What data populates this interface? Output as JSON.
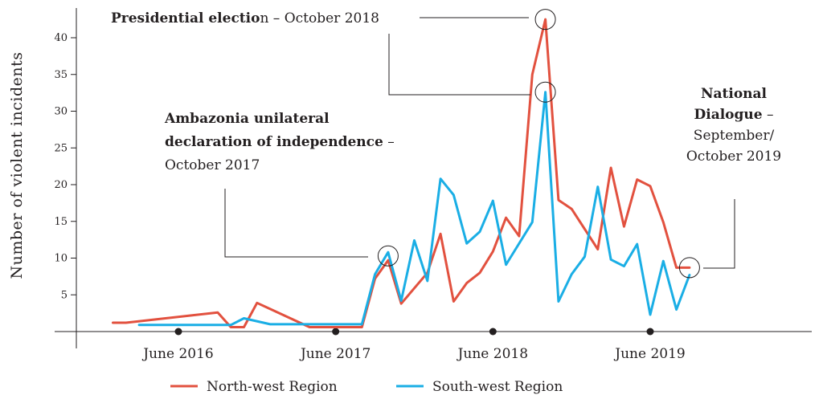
{
  "chart_data": {
    "type": "line",
    "ylabel": "Number of violent incidents",
    "xlabel": "",
    "ylim": [
      0,
      43
    ],
    "yticks": [
      5,
      10,
      15,
      20,
      25,
      30,
      35,
      40
    ],
    "xlim": [
      "2015-12",
      "2020-03"
    ],
    "x_markers": [
      {
        "x": "2016-06",
        "label": "June 2016"
      },
      {
        "x": "2017-06",
        "label": "June 2017"
      },
      {
        "x": "2018-06",
        "label": "June 2018"
      },
      {
        "x": "2019-06",
        "label": "June 2019"
      }
    ],
    "series": [
      {
        "name": "North-west Region",
        "color": "#e2513f",
        "points": [
          [
            "2016-01",
            1.2
          ],
          [
            "2016-02",
            1.2
          ],
          [
            "2016-09",
            2.6
          ],
          [
            "2016-10",
            0.6
          ],
          [
            "2016-11",
            0.6
          ],
          [
            "2016-12",
            3.9
          ],
          [
            "2017-04",
            0.6
          ],
          [
            "2017-06",
            0.6
          ],
          [
            "2017-08",
            0.6
          ],
          [
            "2017-09",
            7.2
          ],
          [
            "2017-10",
            9.7
          ],
          [
            "2017-11",
            3.8
          ],
          [
            "2018-01",
            8.0
          ],
          [
            "2018-02",
            13.3
          ],
          [
            "2018-03",
            4.1
          ],
          [
            "2018-04",
            6.6
          ],
          [
            "2018-05",
            8.0
          ],
          [
            "2018-06",
            10.9
          ],
          [
            "2018-07",
            15.5
          ],
          [
            "2018-08",
            13.0
          ],
          [
            "2018-09",
            35.0
          ],
          [
            "2018-10",
            42.5
          ],
          [
            "2018-11",
            17.9
          ],
          [
            "2018-12",
            16.7
          ],
          [
            "2019-02",
            11.2
          ],
          [
            "2019-03",
            22.3
          ],
          [
            "2019-04",
            14.3
          ],
          [
            "2019-05",
            20.7
          ],
          [
            "2019-06",
            19.8
          ],
          [
            "2019-07",
            14.9
          ],
          [
            "2019-08",
            8.7
          ],
          [
            "2019-09",
            8.7
          ]
        ]
      },
      {
        "name": "South-west Region",
        "color": "#1aaee5",
        "points": [
          [
            "2016-03",
            0.9
          ],
          [
            "2016-10",
            0.9
          ],
          [
            "2016-11",
            1.8
          ],
          [
            "2017-01",
            1.0
          ],
          [
            "2017-06",
            1.0
          ],
          [
            "2017-08",
            1.0
          ],
          [
            "2017-09",
            7.8
          ],
          [
            "2017-10",
            10.8
          ],
          [
            "2017-11",
            4.2
          ],
          [
            "2017-12",
            12.4
          ],
          [
            "2018-01",
            6.9
          ],
          [
            "2018-02",
            20.8
          ],
          [
            "2018-03",
            18.6
          ],
          [
            "2018-04",
            12.0
          ],
          [
            "2018-05",
            13.6
          ],
          [
            "2018-06",
            17.8
          ],
          [
            "2018-07",
            9.1
          ],
          [
            "2018-09",
            14.9
          ],
          [
            "2018-10",
            32.6
          ],
          [
            "2018-11",
            4.1
          ],
          [
            "2018-12",
            7.8
          ],
          [
            "2019-01",
            10.2
          ],
          [
            "2019-02",
            19.7
          ],
          [
            "2019-03",
            9.8
          ],
          [
            "2019-04",
            8.9
          ],
          [
            "2019-05",
            11.9
          ],
          [
            "2019-06",
            2.3
          ],
          [
            "2019-07",
            9.6
          ],
          [
            "2019-08",
            3.0
          ],
          [
            "2019-09",
            7.7
          ]
        ]
      }
    ],
    "annotations": [
      {
        "id": "ambazonia",
        "lines": [
          {
            "parts": [
              {
                "text": "Ambazonia unilateral",
                "bold": true
              }
            ]
          },
          {
            "parts": [
              {
                "text": "declaration of independence",
                "bold": true
              },
              {
                "text": " –",
                "bold": false
              }
            ]
          },
          {
            "parts": [
              {
                "text": "October 2017",
                "bold": false
              }
            ]
          }
        ],
        "circle_at": [
          "2017-10",
          10.3
        ]
      },
      {
        "id": "presidential",
        "lines": [
          {
            "parts": [
              {
                "text": "Presidential electio",
                "bold": true
              },
              {
                "text": "n – October 2018",
                "bold": false
              }
            ]
          }
        ],
        "circle_at": [
          "2018-10",
          42.5
        ],
        "circle2_at": [
          "2018-10",
          32.6
        ]
      },
      {
        "id": "national",
        "lines": [
          {
            "parts": [
              {
                "text": "National",
                "bold": true
              }
            ]
          },
          {
            "parts": [
              {
                "text": "Dialogue",
                "bold": true
              },
              {
                "text": " –",
                "bold": false
              }
            ]
          },
          {
            "parts": [
              {
                "text": "September/",
                "bold": false
              }
            ]
          },
          {
            "parts": [
              {
                "text": "October 2019",
                "bold": false
              }
            ]
          }
        ],
        "circle_at": [
          "2019-09",
          8.7
        ]
      }
    ],
    "grid": false,
    "legend": "bottom"
  }
}
